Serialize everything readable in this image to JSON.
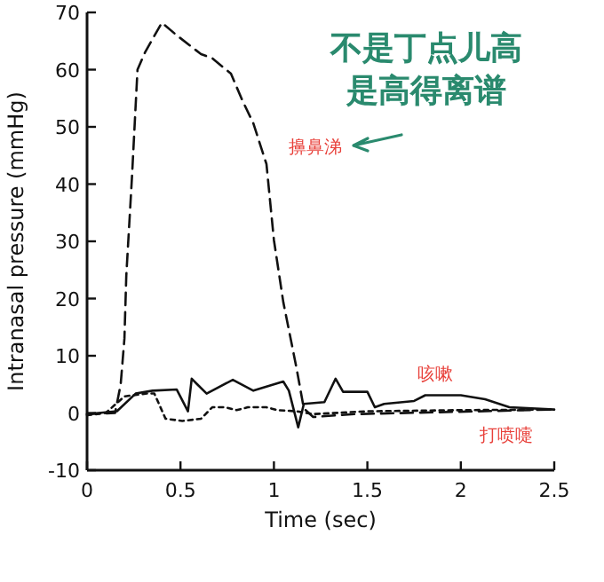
{
  "chart_data": {
    "type": "line",
    "title": "不是丁点儿高",
    "subtitle": "是高得离谱",
    "xlabel": "Time (sec)",
    "ylabel": "Intranasal pressure (mmHg)",
    "xlim": [
      0,
      2.5
    ],
    "xticks": [
      0,
      0.5,
      1,
      1.5,
      2,
      2.5
    ],
    "ylim": [
      -10,
      70
    ],
    "yticks": [
      -10,
      0,
      10,
      20,
      30,
      40,
      50,
      60,
      70
    ],
    "grid": false,
    "marker": "none",
    "series": [
      {
        "name": "擤鼻涕",
        "color": "#111111",
        "line_style": "dashed",
        "x": [
          0,
          0.15,
          0.18,
          0.2,
          0.21,
          0.24,
          0.27,
          0.31,
          0.4,
          0.48,
          0.61,
          0.67,
          0.77,
          0.83,
          0.89,
          0.96,
          1.0,
          1.05,
          1.12,
          1.16,
          1.21,
          1.43,
          2.5
        ],
        "values": [
          -0.2,
          0,
          5,
          13,
          24,
          41,
          60,
          63,
          68.2,
          66,
          62.7,
          62,
          59.3,
          54.7,
          50.6,
          43.5,
          30.2,
          19.4,
          8,
          0.8,
          -0.7,
          -0.2,
          0.6
        ]
      },
      {
        "name": "咳嗽",
        "color": "#111111",
        "line_style": "solid",
        "x": [
          0,
          0.16,
          0.26,
          0.35,
          0.48,
          0.54,
          0.56,
          0.59,
          0.64,
          0.78,
          0.89,
          1.05,
          1.08,
          1.13,
          1.16,
          1.27,
          1.33,
          1.37,
          1.5,
          1.54,
          1.59,
          1.75,
          1.81,
          2.0,
          2.13,
          2.26,
          2.5
        ],
        "values": [
          -0.2,
          0.3,
          3.4,
          3.9,
          4.1,
          0.3,
          6,
          5,
          3.4,
          5.8,
          3.9,
          5.5,
          3.9,
          -2.5,
          1.6,
          1.9,
          6,
          3.7,
          3.7,
          1,
          1.6,
          2.1,
          3.1,
          3.1,
          2.4,
          1,
          0.6
        ]
      },
      {
        "name": "打喷嚏",
        "color": "#111111",
        "line_style": "dotted",
        "x": [
          0,
          0.1,
          0.2,
          0.32,
          0.36,
          0.42,
          0.51,
          0.61,
          0.67,
          0.74,
          0.8,
          0.86,
          0.96,
          1.02,
          1.12,
          1.21,
          1.5,
          2.0,
          2.5
        ],
        "values": [
          -0.4,
          0,
          2.9,
          3.4,
          3.4,
          -1,
          -1.4,
          -1,
          1,
          1,
          0.5,
          1,
          1,
          0.5,
          0.3,
          -0.2,
          0.3,
          0.5,
          0.6
        ]
      }
    ]
  }
}
